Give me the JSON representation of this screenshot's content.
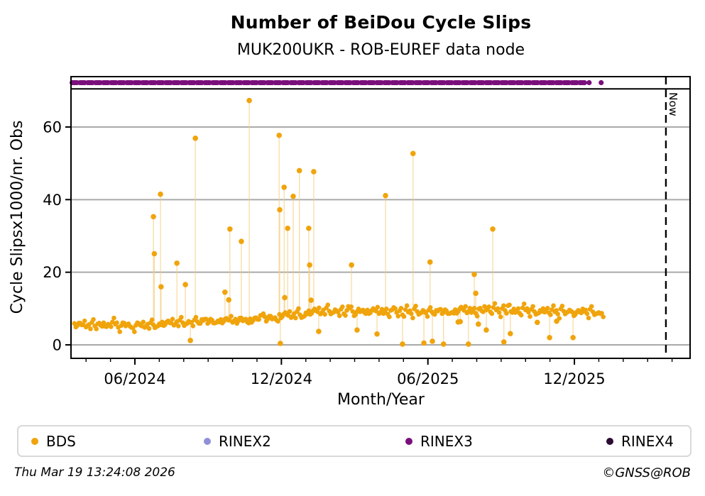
{
  "header": {
    "title": "Number of BeiDou Cycle Slips",
    "subtitle": "MUK200UKR - ROB-EUREF data node"
  },
  "footer": {
    "timestamp": "Thu Mar 19 13:24:08 2026",
    "credit": "©GNSS@ROB"
  },
  "legend": [
    {
      "label": "BDS",
      "color": "#F0A40C"
    },
    {
      "label": "RINEX2",
      "color": "#9090D8"
    },
    {
      "label": "RINEX3",
      "color": "#7A0F7C"
    },
    {
      "label": "RINEX4",
      "color": "#2B0A33"
    }
  ],
  "chart_data": {
    "type": "scatter",
    "title": "Number of BeiDou Cycle Slips",
    "subtitle": "MUK200UKR - ROB-EUREF data node",
    "xlabel": "Month/Year",
    "ylabel": "Cycle Slipsx1000/nr. Obs",
    "grid": true,
    "x_range": [
      2024.198,
      2026.312
    ],
    "ylim": [
      -3.7,
      73.9
    ],
    "y_ticks": [
      0,
      20,
      40,
      60
    ],
    "x_ticks": [
      {
        "value": 2024.41667,
        "label": "06/2024"
      },
      {
        "value": 2024.91667,
        "label": "12/2024"
      },
      {
        "value": 2025.41667,
        "label": "06/2025"
      },
      {
        "value": 2025.91667,
        "label": "12/2025"
      }
    ],
    "now_line": {
      "x": 2026.229,
      "label": "Now"
    },
    "series": [
      {
        "name": "BDS",
        "color": "#F0A40C",
        "baseline": {
          "x_start": 2024.21,
          "x_step": 0.01,
          "values": [
            5.9,
            5.3,
            6.0,
            5.5,
            4.9,
            5.6,
            6.2,
            5.2,
            5.8,
            5.4,
            6.1,
            5.0,
            5.5,
            6.3,
            5.7,
            4.8,
            5.3,
            6.0,
            5.6,
            5.1,
            4.6,
            5.4,
            5.9,
            5.2,
            4.8,
            5.7,
            6.1,
            5.5,
            5.0,
            5.8,
            6.3,
            5.6,
            6.6,
            6.0,
            5.4,
            6.4,
            6.8,
            6.1,
            5.7,
            6.5,
            6.2,
            6.9,
            6.4,
            5.9,
            6.7,
            7.1,
            6.3,
            6.8,
            6.0,
            6.6,
            7.0,
            6.5,
            7.3,
            6.8,
            6.2,
            7.1,
            6.6,
            7.4,
            6.9,
            6.3,
            7.2,
            6.7,
            7.5,
            7.0,
            8.2,
            7.7,
            7.1,
            7.9,
            7.3,
            6.8,
            8.4,
            7.8,
            8.9,
            8.1,
            7.5,
            8.6,
            9.2,
            8.3,
            7.7,
            8.8,
            9.4,
            8.7,
            9.9,
            9.1,
            8.5,
            9.6,
            10.2,
            9.3,
            8.8,
            9.7,
            9.0,
            9.8,
            8.6,
            9.5,
            10.1,
            9.2,
            8.4,
            9.9,
            9.4,
            8.9,
            9.6,
            8.8,
            10.0,
            9.3,
            8.6,
            9.8,
            9.1,
            8.5,
            9.5,
            10.3,
            8.9,
            9.4,
            8.3,
            9.7,
            9.0,
            8.6,
            9.9,
            9.2,
            8.7,
            9.5,
            8.8,
            9.6,
            9.1,
            8.4,
            9.3,
            9.8,
            8.9,
            9.4,
            8.6,
            9.0,
            9.7,
            9.2,
            10.4,
            9.5,
            8.8,
            10.1,
            9.3,
            8.7,
            9.9,
            9.4,
            10.6,
            9.8,
            9.1,
            10.3,
            9.6,
            8.9,
            10.0,
            9.5,
            10.8,
            9.2,
            9.9,
            9.3,
            8.7,
            10.2,
            9.6,
            9.0,
            9.8,
            9.2,
            8.6,
            9.5,
            10.0,
            9.4,
            8.8,
            9.7,
            9.1,
            8.5,
            9.9,
            9.3,
            8.9,
            9.6,
            9.0,
            8.4,
            9.5,
            8.8,
            9.2,
            8.6,
            9.8,
            9.1,
            8.5,
            8.9,
            8.7
          ]
        },
        "outliers": [
          [
            2024.48,
            35.3
          ],
          [
            2024.483,
            25.1
          ],
          [
            2024.504,
            41.5
          ],
          [
            2024.506,
            16.0
          ],
          [
            2024.56,
            22.5
          ],
          [
            2024.589,
            16.6
          ],
          [
            2024.606,
            1.2
          ],
          [
            2024.623,
            56.9
          ],
          [
            2024.724,
            14.5
          ],
          [
            2024.737,
            12.4
          ],
          [
            2024.741,
            31.9
          ],
          [
            2024.78,
            28.5
          ],
          [
            2024.807,
            67.3
          ],
          [
            2024.909,
            57.7
          ],
          [
            2024.911,
            37.2
          ],
          [
            2024.913,
            0.4
          ],
          [
            2024.926,
            43.4
          ],
          [
            2024.928,
            13.0
          ],
          [
            2024.938,
            32.1
          ],
          [
            2024.957,
            40.9
          ],
          [
            2024.978,
            48.0
          ],
          [
            2025.01,
            32.1
          ],
          [
            2025.013,
            22.0
          ],
          [
            2025.018,
            12.3
          ],
          [
            2025.027,
            47.7
          ],
          [
            2025.044,
            3.7
          ],
          [
            2025.156,
            22.0
          ],
          [
            2025.175,
            4.1
          ],
          [
            2025.243,
            3.0
          ],
          [
            2025.272,
            41.1
          ],
          [
            2025.33,
            0.2
          ],
          [
            2025.366,
            52.7
          ],
          [
            2025.403,
            0.5
          ],
          [
            2025.424,
            22.8
          ],
          [
            2025.432,
            1.0
          ],
          [
            2025.47,
            0.2
          ],
          [
            2025.52,
            6.3
          ],
          [
            2025.527,
            6.4
          ],
          [
            2025.555,
            0.2
          ],
          [
            2025.575,
            19.4
          ],
          [
            2025.58,
            14.2
          ],
          [
            2025.589,
            5.7
          ],
          [
            2025.616,
            4.1
          ],
          [
            2025.638,
            31.9
          ],
          [
            2025.676,
            0.8
          ],
          [
            2025.698,
            3.1
          ],
          [
            2025.79,
            6.2
          ],
          [
            2025.832,
            2.0
          ],
          [
            2025.856,
            6.5
          ],
          [
            2025.912,
            2.0
          ]
        ]
      },
      {
        "name": "RINEX3",
        "color": "#7A0F7C",
        "band_y_label": "file availability strip (top band)",
        "segments": [
          [
            2024.2,
            2025.952
          ]
        ],
        "dots": [
          2025.967,
          2026.008
        ]
      },
      {
        "name": "RINEX2",
        "color": "#9090D8",
        "segments": [],
        "dots": []
      },
      {
        "name": "RINEX4",
        "color": "#2B0A33",
        "segments": [],
        "dots": []
      }
    ]
  }
}
